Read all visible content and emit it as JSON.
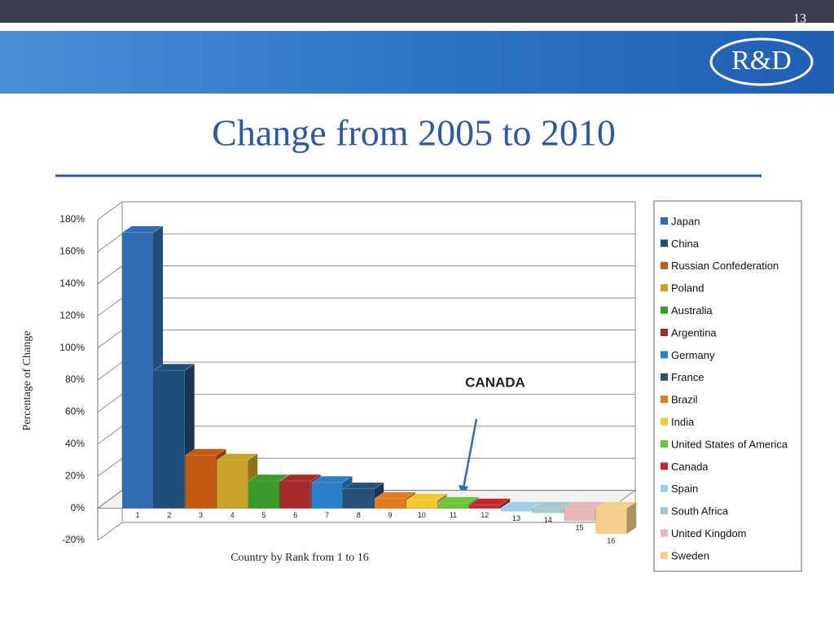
{
  "slide_number": "13",
  "logo": "R&D",
  "chart_data": {
    "type": "bar3d",
    "title": "Change from 2005 to 2010",
    "ylabel": "Percentage of Change",
    "xlabel": "Country by Rank from 1 to 16",
    "annotation": "CANADA",
    "categories": [
      "1",
      "2",
      "3",
      "4",
      "5",
      "6",
      "7",
      "8",
      "9",
      "10",
      "11",
      "12",
      "13",
      "14",
      "15",
      "16"
    ],
    "values": [
      172,
      86,
      33,
      30,
      17,
      17,
      16,
      12,
      6,
      5,
      3,
      2,
      -2,
      -3,
      -8,
      -16
    ],
    "names": [
      "Japan",
      "China",
      "Russian Confederation",
      "Poland",
      "Australia",
      "Argentina",
      "Germany",
      "France",
      "Brazil",
      "India",
      "United States of America",
      "Canada",
      "Spain",
      "South Africa",
      "United Kingdom",
      "Sweden"
    ],
    "colors": [
      "#2e6db4",
      "#1f4e79",
      "#c55a11",
      "#c9a227",
      "#3a9a2a",
      "#a52a2a",
      "#2a7fc9",
      "#24507a",
      "#e07b20",
      "#f0c830",
      "#6cc43a",
      "#c0282c",
      "#9dd0ea",
      "#a8c8d0",
      "#e8b8b8",
      "#f5d08a"
    ],
    "ylim": [
      -20,
      180
    ],
    "yticks": [
      {
        "value": -20,
        "label": "-20%"
      },
      {
        "value": 0,
        "label": "0%"
      },
      {
        "value": 20,
        "label": "20%"
      },
      {
        "value": 40,
        "label": "40%"
      },
      {
        "value": 60,
        "label": "60%"
      },
      {
        "value": 80,
        "label": "80%"
      },
      {
        "value": 100,
        "label": "100%"
      },
      {
        "value": 120,
        "label": "120%"
      },
      {
        "value": 140,
        "label": "140%"
      },
      {
        "value": 160,
        "label": "160%"
      },
      {
        "value": 180,
        "label": "180%"
      }
    ],
    "grid": true,
    "legend": "right"
  }
}
